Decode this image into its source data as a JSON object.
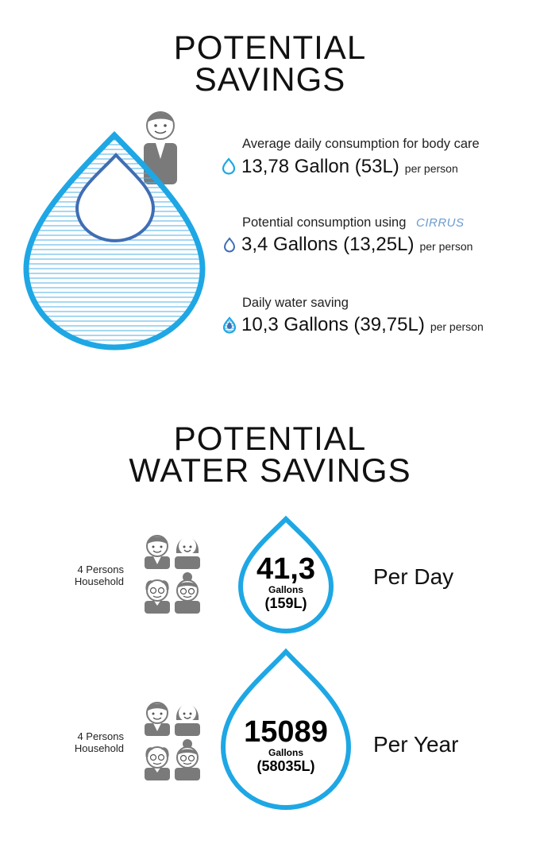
{
  "section1": {
    "title_line1": "POTENTIAL",
    "title_line2": "SAVINGS",
    "stats": [
      {
        "caption": "Average daily consumption for body care",
        "value": "13,78 Gallon (53L)",
        "unit": "per person",
        "icon": "water-drop-outline-icon"
      },
      {
        "caption": "Potential consumption using",
        "value": "3,4 Gallons (13,25L)",
        "unit": "per person",
        "icon": "water-drop-small-icon"
      },
      {
        "caption": "Daily water saving",
        "value": "10,3 Gallons (39,75L)",
        "unit": "per person",
        "icon": "water-drop-filled-icon"
      }
    ],
    "brand": "CIRRUS"
  },
  "section2": {
    "title_line1": "POTENTIAL",
    "title_line2": "WATER SAVINGS",
    "rows": [
      {
        "household_line1": "4 Persons",
        "household_line2": "Household",
        "amount": "41,3",
        "unit": "Gallons",
        "liters": "(159L)",
        "period": "Per Day"
      },
      {
        "household_line1": "4 Persons",
        "household_line2": "Household",
        "amount": "15089",
        "unit": "Gallons",
        "liters": "(58035L)",
        "period": "Per Year"
      }
    ]
  },
  "colors": {
    "accent": "#1ea7e4",
    "inner_drop": "#3f6eb4",
    "icon_gray": "#7a7a7a",
    "hatch": "#4fb2e6"
  }
}
